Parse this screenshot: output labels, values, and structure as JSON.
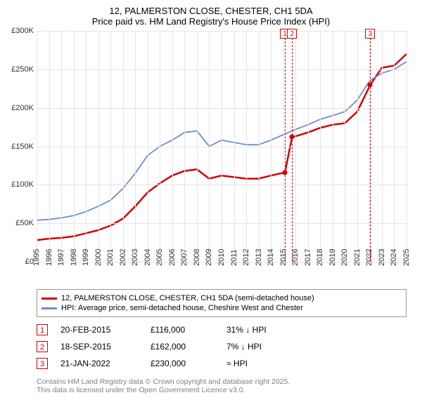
{
  "title": {
    "line1": "12, PALMERSTON CLOSE, CHESTER, CH1 5DA",
    "line2": "Price paid vs. HM Land Registry's House Price Index (HPI)"
  },
  "chart": {
    "type": "line",
    "ylim": [
      0,
      300000
    ],
    "ytick_step": 50000,
    "ytick_labels": [
      "£0",
      "£50K",
      "£100K",
      "£150K",
      "£200K",
      "£250K",
      "£300K"
    ],
    "xlim": [
      1995,
      2025
    ],
    "xticks": [
      1995,
      1996,
      1997,
      1998,
      1999,
      2000,
      2001,
      2002,
      2003,
      2004,
      2005,
      2006,
      2007,
      2008,
      2009,
      2010,
      2011,
      2012,
      2013,
      2014,
      2015,
      2016,
      2017,
      2018,
      2019,
      2020,
      2021,
      2022,
      2023,
      2024,
      2025
    ],
    "grid_color": "#e5e5e5",
    "background_color": "#ffffff",
    "series": [
      {
        "id": "property",
        "label": "12, PALMERSTON CLOSE, CHESTER, CH1 5DA (semi-detached house)",
        "color": "#d00000",
        "width": 2.5,
        "points": [
          [
            1995,
            28000
          ],
          [
            1996,
            30000
          ],
          [
            1997,
            31000
          ],
          [
            1998,
            33000
          ],
          [
            1999,
            37000
          ],
          [
            2000,
            41000
          ],
          [
            2001,
            47000
          ],
          [
            2002,
            56000
          ],
          [
            2003,
            72000
          ],
          [
            2004,
            90000
          ],
          [
            2005,
            102000
          ],
          [
            2006,
            112000
          ],
          [
            2007,
            118000
          ],
          [
            2008,
            120000
          ],
          [
            2009,
            108000
          ],
          [
            2010,
            112000
          ],
          [
            2011,
            110000
          ],
          [
            2012,
            108000
          ],
          [
            2013,
            108000
          ],
          [
            2014,
            112000
          ],
          [
            2015.14,
            116000
          ],
          [
            2015.72,
            162000
          ],
          [
            2016,
            163000
          ],
          [
            2017,
            168000
          ],
          [
            2018,
            174000
          ],
          [
            2019,
            178000
          ],
          [
            2020,
            180000
          ],
          [
            2021,
            195000
          ],
          [
            2022.06,
            230000
          ],
          [
            2023,
            252000
          ],
          [
            2024,
            255000
          ],
          [
            2025,
            270000
          ]
        ]
      },
      {
        "id": "hpi",
        "label": "HPI: Average price, semi-detached house, Cheshire West and Chester",
        "color": "#6b8fc5",
        "width": 1.8,
        "points": [
          [
            1995,
            54000
          ],
          [
            1996,
            55000
          ],
          [
            1997,
            57000
          ],
          [
            1998,
            60000
          ],
          [
            1999,
            65000
          ],
          [
            2000,
            72000
          ],
          [
            2001,
            80000
          ],
          [
            2002,
            95000
          ],
          [
            2003,
            115000
          ],
          [
            2004,
            138000
          ],
          [
            2005,
            150000
          ],
          [
            2006,
            158000
          ],
          [
            2007,
            168000
          ],
          [
            2008,
            170000
          ],
          [
            2009,
            150000
          ],
          [
            2010,
            158000
          ],
          [
            2011,
            155000
          ],
          [
            2012,
            152000
          ],
          [
            2013,
            152000
          ],
          [
            2014,
            158000
          ],
          [
            2015,
            165000
          ],
          [
            2016,
            172000
          ],
          [
            2017,
            178000
          ],
          [
            2018,
            185000
          ],
          [
            2019,
            190000
          ],
          [
            2020,
            195000
          ],
          [
            2021,
            210000
          ],
          [
            2022,
            235000
          ],
          [
            2023,
            245000
          ],
          [
            2024,
            250000
          ],
          [
            2025,
            260000
          ]
        ]
      }
    ],
    "markers": [
      {
        "n": "1",
        "x": 2015.14
      },
      {
        "n": "2",
        "x": 2015.72
      },
      {
        "n": "3",
        "x": 2022.06
      }
    ],
    "data_points": [
      {
        "x": 2015.14,
        "y": 116000,
        "color": "#d00000"
      },
      {
        "x": 2015.72,
        "y": 162000,
        "color": "#d00000"
      },
      {
        "x": 2022.06,
        "y": 230000,
        "color": "#d00000"
      }
    ]
  },
  "events": [
    {
      "n": "1",
      "date": "20-FEB-2015",
      "price": "£116,000",
      "diff": "31% ↓ HPI"
    },
    {
      "n": "2",
      "date": "18-SEP-2015",
      "price": "£162,000",
      "diff": "7% ↓ HPI"
    },
    {
      "n": "3",
      "date": "21-JAN-2022",
      "price": "£230,000",
      "diff": "≈ HPI"
    }
  ],
  "footer": {
    "line1": "Contains HM Land Registry data © Crown copyright and database right 2025.",
    "line2": "This data is licensed under the Open Government Licence v3.0."
  }
}
